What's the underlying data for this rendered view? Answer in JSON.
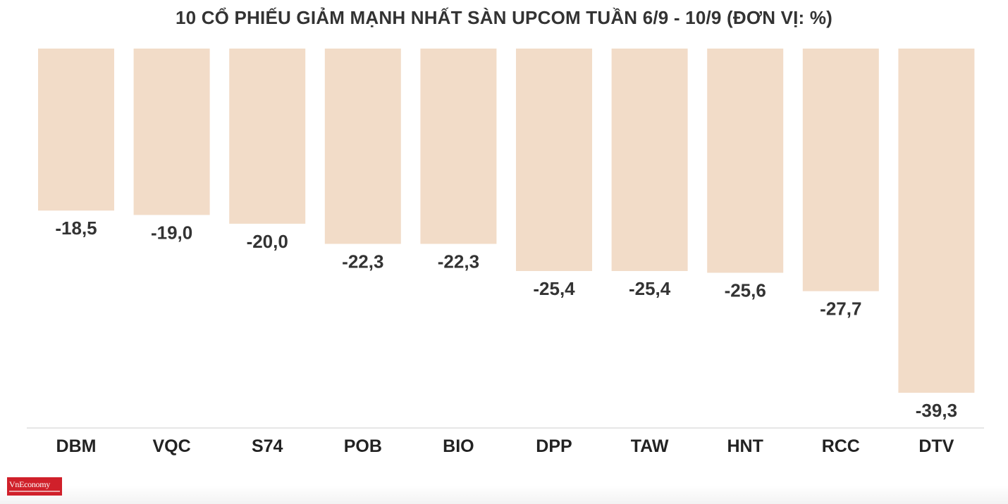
{
  "chart_data": {
    "type": "bar",
    "title": "10 CỔ PHIẾU GIẢM MẠNH NHẤT SÀN UPCOM TUẦN 6/9 - 10/9 (ĐƠN VỊ: %)",
    "categories": [
      "DBM",
      "VQC",
      "S74",
      "POB",
      "BIO",
      "DPP",
      "TAW",
      "HNT",
      "RCC",
      "DTV"
    ],
    "values": [
      -18.5,
      -19.0,
      -20.0,
      -22.3,
      -22.3,
      -25.4,
      -25.4,
      -25.6,
      -27.7,
      -39.3
    ],
    "value_labels": [
      "-18,5",
      "-19,0",
      "-20,0",
      "-22,3",
      "-22,3",
      "-25,4",
      "-25,4",
      "-25,6",
      "-27,7",
      "-39,3"
    ],
    "ylim": [
      -43,
      0
    ],
    "grid": false,
    "bar_color": "#f2dcc8",
    "label_color": "#333333",
    "axis_color": "#dddddd"
  },
  "logo": {
    "text": "VnEconomy",
    "brand_color": "#d0202a"
  }
}
